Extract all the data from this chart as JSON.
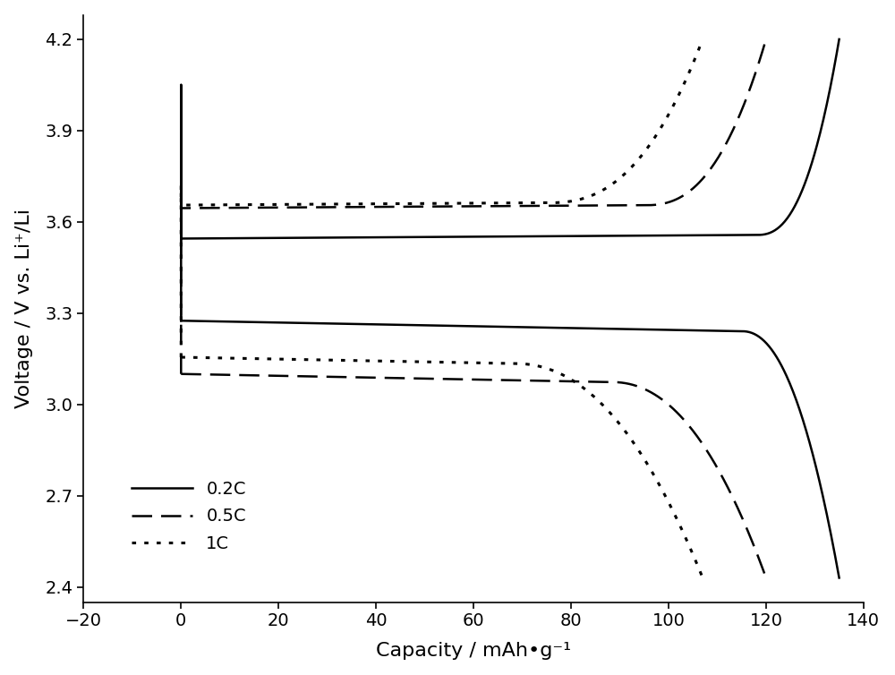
{
  "title": "",
  "xlabel": "Capacity / mAh•g⁻¹",
  "ylabel": "Voltage / V vs. Li⁺/Li",
  "xlim": [
    -20,
    140
  ],
  "ylim": [
    2.35,
    4.28
  ],
  "xticks": [
    -20,
    0,
    20,
    40,
    60,
    80,
    100,
    120,
    140
  ],
  "yticks": [
    2.4,
    2.7,
    3.0,
    3.3,
    3.6,
    3.9,
    4.2
  ],
  "background_color": "#ffffff",
  "line_color": "#000000",
  "c02_charge_plateau": 3.545,
  "c02_discharge_plateau": 3.275,
  "c02_charge_capacity": 135,
  "c02_discharge_capacity": 135,
  "c02_charge_knee": 118,
  "c02_discharge_knee": 115,
  "c02_discharge_end": 2.43,
  "c05_charge_plateau": 3.645,
  "c05_discharge_plateau": 3.1,
  "c05_charge_capacity": 120,
  "c05_discharge_capacity": 120,
  "c05_charge_knee": 95,
  "c05_discharge_knee": 88,
  "c05_discharge_end": 2.43,
  "c1_charge_plateau": 3.655,
  "c1_discharge_plateau": 3.155,
  "c1_charge_capacity": 107,
  "c1_discharge_capacity": 107,
  "c1_charge_knee": 75,
  "c1_discharge_knee": 68,
  "c1_discharge_end": 2.43,
  "spike_top_02": 4.05,
  "spike_bottom_02": 3.275,
  "spike_top_05": 3.82,
  "spike_bottom_05": 3.1,
  "spike_top_1": 3.72,
  "spike_bottom_1": 3.155
}
